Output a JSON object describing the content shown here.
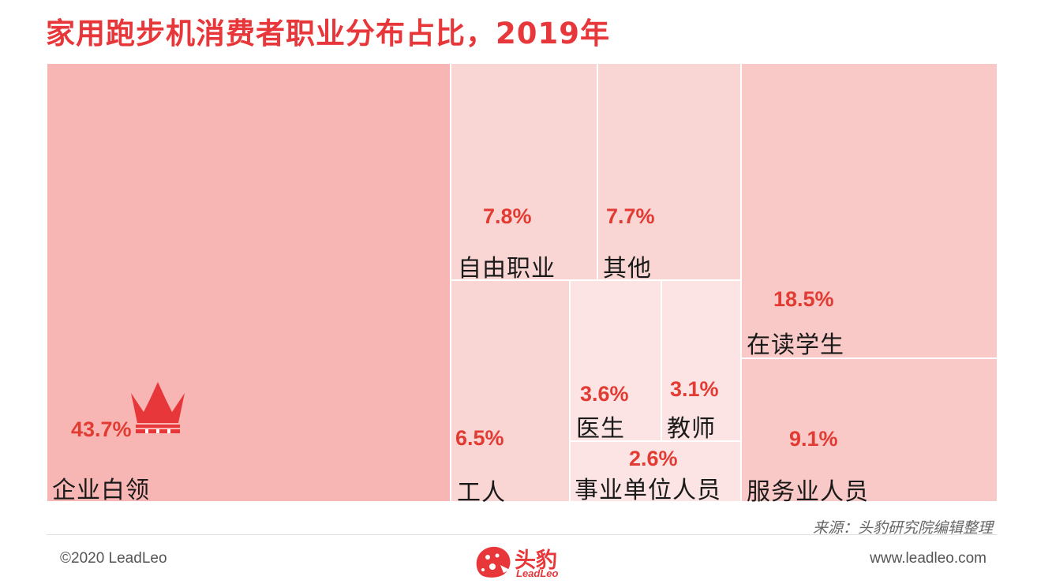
{
  "title": "家用跑步机消费者职业分布占比，2019年",
  "source": "来源：头豹研究院编辑整理",
  "footer": {
    "copyright": "©2020 LeadLeo",
    "website": "www.leadleo.com",
    "brand_cn": "头豹",
    "brand_en": "LeadLeo"
  },
  "colors": {
    "title": "#e8373a",
    "value": "#e23b33",
    "tile_largest": "#f7b6b4",
    "tile_large": "#f8c9c6",
    "tile_mid": "#f9d6d4",
    "tile_small": "#fbe4e3"
  },
  "chart_data": {
    "type": "treemap",
    "title": "家用跑步机消费者职业分布占比，2019年",
    "unit": "%",
    "items": [
      {
        "label": "企业白领",
        "value": 43.7,
        "value_text": "43.7%"
      },
      {
        "label": "在读学生",
        "value": 18.5,
        "value_text": "18.5%"
      },
      {
        "label": "服务业人员",
        "value": 9.1,
        "value_text": "9.1%"
      },
      {
        "label": "自由职业",
        "value": 7.8,
        "value_text": "7.8%"
      },
      {
        "label": "其他",
        "value": 7.7,
        "value_text": "7.7%"
      },
      {
        "label": "工人",
        "value": 6.5,
        "value_text": "6.5%"
      },
      {
        "label": "医生",
        "value": 3.6,
        "value_text": "3.6%"
      },
      {
        "label": "教师",
        "value": 3.1,
        "value_text": "3.1%"
      },
      {
        "label": "事业单位人员",
        "value": 2.6,
        "value_text": "2.6%"
      }
    ]
  }
}
